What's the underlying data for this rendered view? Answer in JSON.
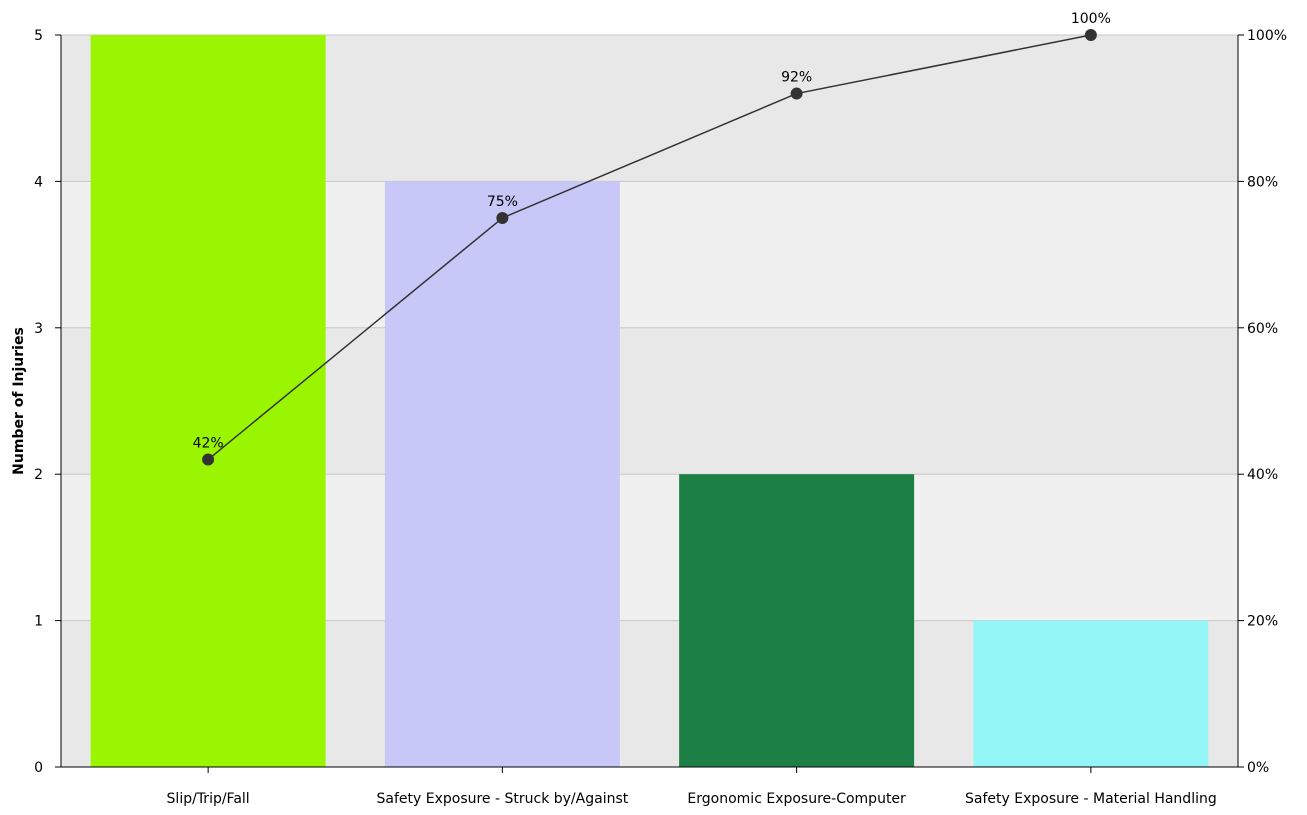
{
  "chart_data": {
    "type": "bar",
    "title": "",
    "xlabel": "",
    "ylabel": "Number of Injuries",
    "y2label": "",
    "categories": [
      "Slip/Trip/Fall",
      "Safety Exposure - Struck by/Against",
      "Ergonomic Exposure-Computer",
      "Safety Exposure - Material Handling"
    ],
    "values": [
      5,
      4,
      2,
      1
    ],
    "bar_colors": [
      "#99f600",
      "#c8c8f8",
      "#1c8046",
      "#94f6f6"
    ],
    "ylim": [
      0,
      5
    ],
    "yticks": [
      0,
      1,
      2,
      3,
      4,
      5
    ],
    "cumulative_series": {
      "values": [
        42,
        75,
        92,
        100
      ],
      "labels": [
        "42%",
        "75%",
        "92%",
        "100%"
      ],
      "color": "#333333"
    },
    "y2lim": [
      0,
      100
    ],
    "y2ticks": [
      "0%",
      "20%",
      "40%",
      "60%",
      "80%",
      "100%"
    ],
    "grid": true,
    "band_colors": [
      "#e8e8e8",
      "#f0f0f0"
    ],
    "legend": "none"
  }
}
